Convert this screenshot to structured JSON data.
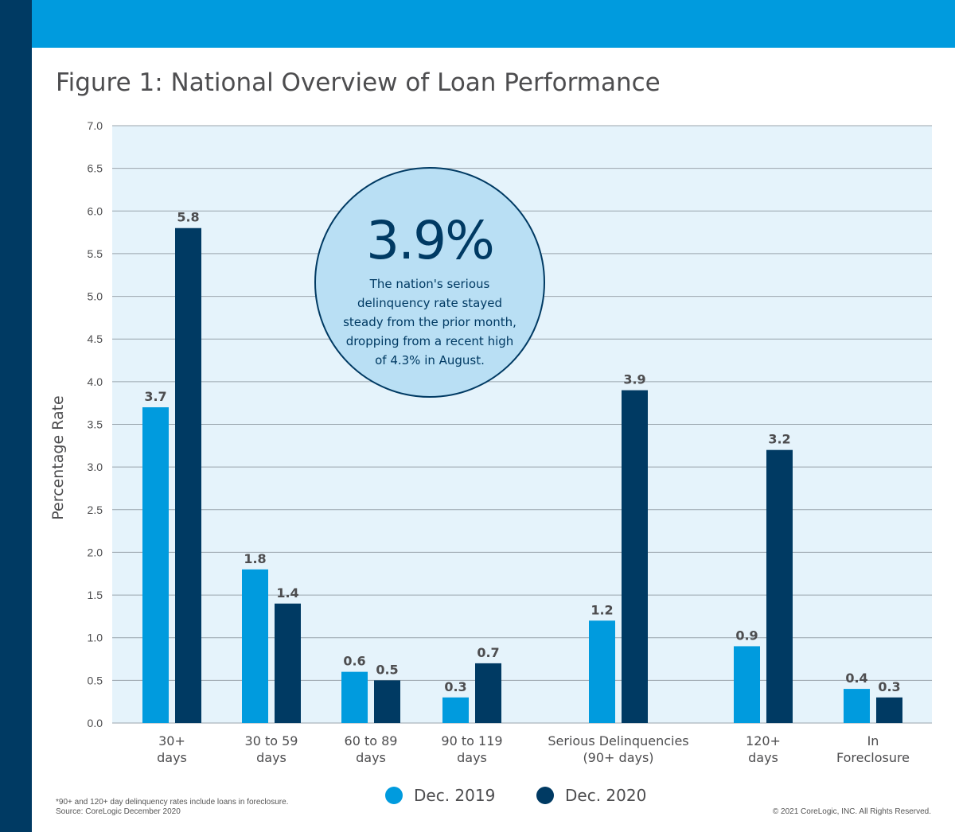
{
  "title": "Figure 1: National Overview of Loan Performance",
  "colors": {
    "dec2019": "#009bde",
    "dec2020": "#003a63",
    "plot_bg": "#e5f3fb",
    "grid": "#9aa5ad",
    "header_band": "#009bde",
    "side_strip": "#003a63",
    "callout_fill": "#b9dff4"
  },
  "callout": {
    "value": "3.9%",
    "text": "The nation's serious delinquency rate stayed steady from the prior month, dropping from a recent high of 4.3% in August."
  },
  "legend": {
    "dec2019": "Dec. 2019",
    "dec2020": "Dec. 2020"
  },
  "footnote": {
    "line1": "*90+ and 120+ day delinquency rates include loans in foreclosure.",
    "line2": "Source: CoreLogic December 2020"
  },
  "copyright": "© 2021 CoreLogic, INC. All Rights Reserved.",
  "chart_data": {
    "type": "bar",
    "ylabel": "Percentage Rate",
    "ylim": [
      0,
      7.0
    ],
    "yticks": [
      "0.0",
      "0.5",
      "1.0",
      "1.5",
      "2.0",
      "2.5",
      "3.0",
      "3.5",
      "4.0",
      "4.5",
      "5.0",
      "5.5",
      "6.0",
      "6.5",
      "7.0"
    ],
    "grid": true,
    "legend_position": "bottom",
    "categories": [
      [
        "30+",
        "days"
      ],
      [
        "30 to 59",
        "days"
      ],
      [
        "60 to 89",
        "days"
      ],
      [
        "90 to 119",
        "days"
      ],
      [
        "Serious Delinquencies",
        "(90+ days)"
      ],
      [
        "120+",
        "days"
      ],
      [
        "In",
        "Foreclosure"
      ]
    ],
    "series": [
      {
        "name": "Dec. 2019",
        "values": [
          3.7,
          1.8,
          0.6,
          0.3,
          1.2,
          0.9,
          0.4
        ],
        "labels": [
          "3.7",
          "1.8",
          "0.6",
          "0.3",
          "1.2",
          "0.9",
          "0.4"
        ]
      },
      {
        "name": "Dec. 2020",
        "values": [
          5.8,
          1.4,
          0.5,
          0.7,
          3.9,
          3.2,
          0.3
        ],
        "labels": [
          "5.8",
          "1.4",
          "0.5",
          "0.7",
          "3.9",
          "3.2",
          "0.3"
        ]
      }
    ]
  }
}
